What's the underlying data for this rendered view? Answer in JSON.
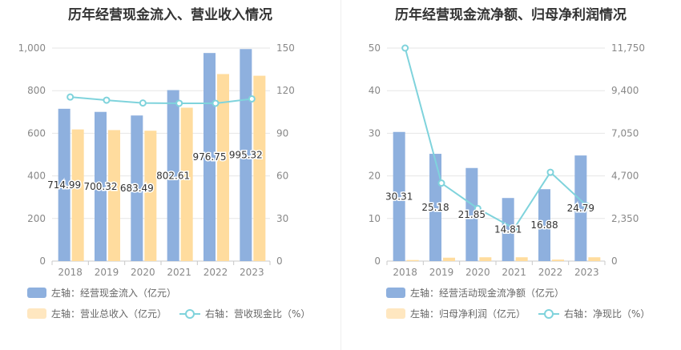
{
  "chart_data": [
    {
      "type": "bar",
      "title": "历年经营现金流入、营业收入情况",
      "categories": [
        "2018",
        "2019",
        "2020",
        "2021",
        "2022",
        "2023"
      ],
      "series": [
        {
          "name": "左轴：经营现金流入（亿元）",
          "axis": "left",
          "kind": "bar",
          "color": "#8eb0de",
          "values": [
            714.99,
            700.32,
            683.49,
            802.61,
            976.75,
            995.32
          ],
          "labels": [
            "714.99",
            "700.32",
            "683.49",
            "802.61",
            "976.75",
            "995.32"
          ]
        },
        {
          "name": "左轴：营业总收入（亿元）",
          "axis": "left",
          "kind": "bar",
          "color": "#ffdc9e",
          "values": [
            618,
            615,
            612,
            720,
            878,
            870
          ]
        },
        {
          "name": "右轴：营收现金比（%）",
          "axis": "right",
          "kind": "line",
          "color": "#7fd3dc",
          "values": [
            115.5,
            113.3,
            111.3,
            111.1,
            111.1,
            114.2
          ]
        }
      ],
      "left_axis": {
        "ylim": [
          0,
          1000
        ],
        "ticks": [
          "0",
          "200",
          "400",
          "600",
          "800",
          "1,000"
        ]
      },
      "right_axis": {
        "ylim": [
          0,
          150
        ],
        "ticks": [
          "0",
          "30",
          "60",
          "90",
          "120",
          "150"
        ]
      },
      "grid": true,
      "legend_position": "bottom"
    },
    {
      "type": "bar",
      "title": "历年经营现金流净额、归母净利润情况",
      "categories": [
        "2018",
        "2019",
        "2020",
        "2021",
        "2022",
        "2023"
      ],
      "series": [
        {
          "name": "左轴：经营活动现金流净额（亿元）",
          "axis": "left",
          "kind": "bar",
          "color": "#8eb0de",
          "values": [
            30.31,
            25.18,
            21.85,
            14.81,
            16.88,
            24.79
          ],
          "labels": [
            "30.31",
            "25.18",
            "21.85",
            "14.81",
            "16.88",
            "24.79"
          ]
        },
        {
          "name": "左轴：归母净利润（亿元）",
          "axis": "left",
          "kind": "bar",
          "color": "#ffdc9e",
          "values": [
            0.25,
            0.8,
            0.9,
            0.9,
            0.35,
            0.9
          ]
        },
        {
          "name": "右轴：净现比（%）",
          "axis": "right",
          "kind": "line",
          "color": "#7fd3dc",
          "values": [
            11750,
            4300,
            2900,
            1800,
            4900,
            3050
          ]
        }
      ],
      "left_axis": {
        "ylim": [
          0,
          50
        ],
        "ticks": [
          "0",
          "10",
          "20",
          "30",
          "40",
          "50"
        ]
      },
      "right_axis": {
        "ylim": [
          0,
          11750
        ],
        "ticks": [
          "0",
          "2,350",
          "4,700",
          "7,050",
          "9,400",
          "11,750"
        ]
      },
      "grid": true,
      "legend_position": "bottom"
    }
  ]
}
